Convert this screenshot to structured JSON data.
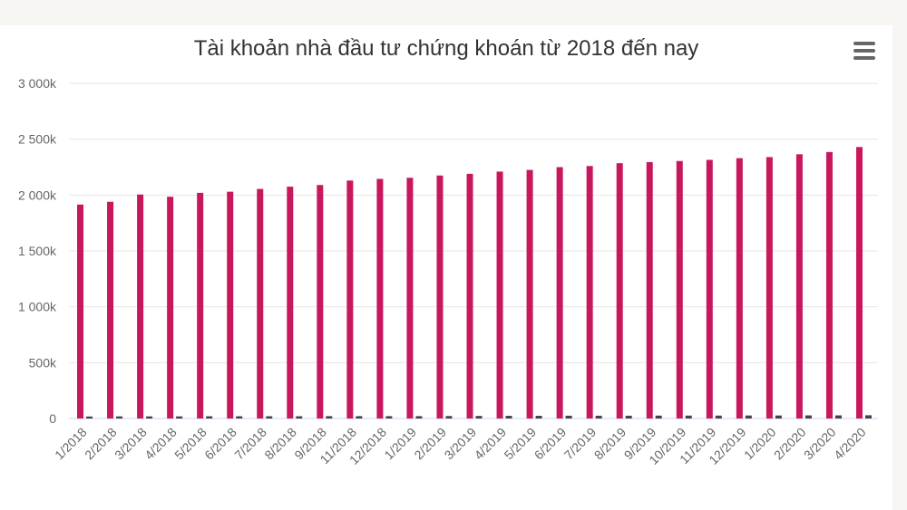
{
  "colors": {
    "series_main": "#c8175d",
    "series_secondary": "#434348",
    "grid": "#e6e6e6",
    "axis_text": "#666666"
  },
  "menu_icon": "hamburger-menu-icon",
  "chart_data": {
    "type": "bar",
    "title": "Tài khoản nhà đầu tư chứng khoán từ 2018 đến nay",
    "xlabel": "",
    "ylabel": "",
    "ylim": [
      0,
      3000
    ],
    "yticks": [
      0,
      500,
      1000,
      1500,
      2000,
      2500,
      3000
    ],
    "ytick_labels": [
      "0",
      "500k",
      "1 000k",
      "1 500k",
      "2 000k",
      "2 500k",
      "3 000k"
    ],
    "grid": true,
    "categories": [
      "1/2018",
      "2/2018",
      "3/2018",
      "4/2018",
      "5/2018",
      "6/2018",
      "7/2018",
      "8/2018",
      "9/2018",
      "11/2018",
      "12/2018",
      "1/2019",
      "2/2019",
      "3/2019",
      "4/2019",
      "5/2019",
      "6/2019",
      "7/2019",
      "8/2019",
      "9/2019",
      "10/2019",
      "11/2019",
      "12/2019",
      "1/2020",
      "2/2020",
      "3/2020",
      "4/2020"
    ],
    "series": [
      {
        "values": [
          1915,
          1940,
          2005,
          1985,
          2020,
          2030,
          2055,
          2075,
          2090,
          2130,
          2145,
          2155,
          2175,
          2190,
          2210,
          2225,
          2250,
          2260,
          2285,
          2295,
          2305,
          2315,
          2330,
          2340,
          2365,
          2385,
          2430
        ]
      },
      {
        "values": [
          18,
          19,
          19,
          19,
          20,
          20,
          20,
          20,
          21,
          21,
          21,
          21,
          22,
          23,
          24,
          24,
          25,
          25,
          25,
          26,
          26,
          26,
          27,
          27,
          28,
          28,
          29
        ]
      }
    ]
  }
}
